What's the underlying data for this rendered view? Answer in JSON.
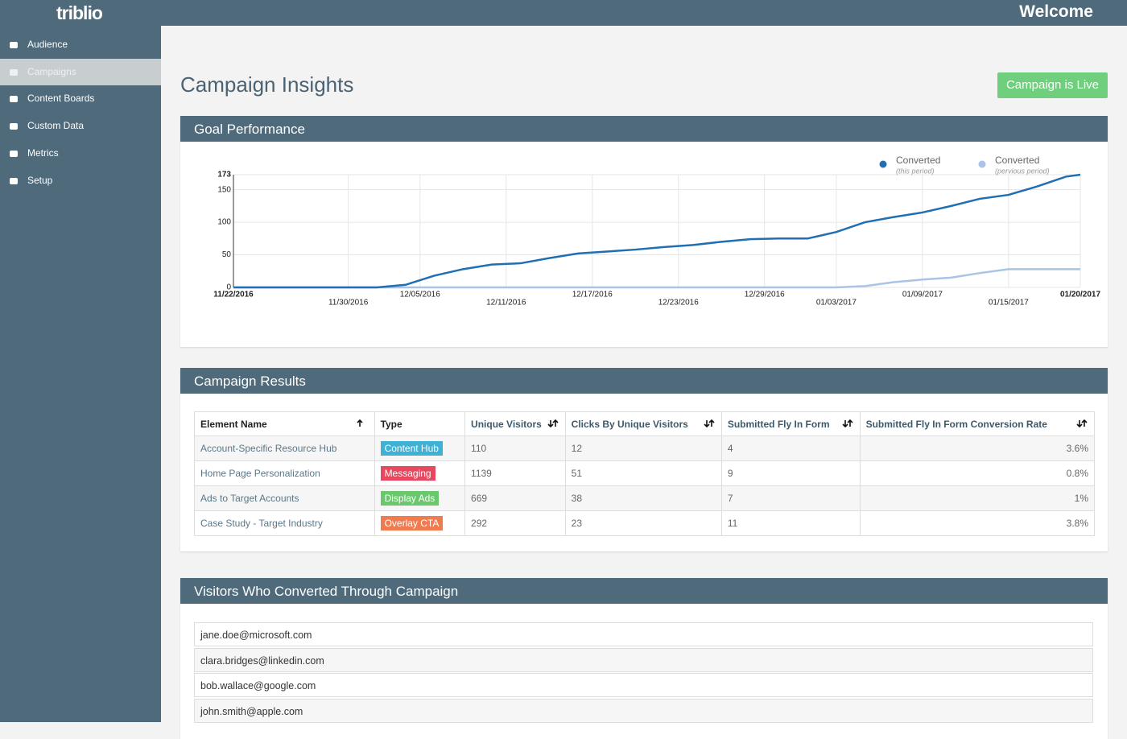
{
  "header": {
    "logo": "triblio",
    "welcome": "Welcome"
  },
  "sidebar": {
    "items": [
      "Audience",
      "Campaigns",
      "Content Boards",
      "Custom Data",
      "Metrics",
      "Setup"
    ],
    "active": 1
  },
  "page": {
    "title": "Campaign Insights",
    "status_button": "Campaign is Live"
  },
  "panels": {
    "goal_performance": "Goal Performance"
  },
  "chart_data": {
    "type": "line",
    "x": [
      "11/22/2016",
      "11/24/2016",
      "11/26/2016",
      "11/28/2016",
      "11/30/2016",
      "12/02/2016",
      "12/04/2016",
      "12/06/2016",
      "12/08/2016",
      "12/10/2016",
      "12/12/2016",
      "12/14/2016",
      "12/16/2016",
      "12/18/2016",
      "12/20/2016",
      "12/22/2016",
      "12/24/2016",
      "12/26/2016",
      "12/28/2016",
      "12/30/2016",
      "01/01/2017",
      "01/03/2017",
      "01/05/2017",
      "01/07/2017",
      "01/09/2017",
      "01/11/2017",
      "01/13/2017",
      "01/15/2017",
      "01/17/2017",
      "01/19/2017",
      "01/20/2017"
    ],
    "xlim": [
      "11/22/2016",
      "01/20/2017"
    ],
    "xticks": [
      "11/22/2016",
      "11/30/2016",
      "12/05/2016",
      "12/11/2016",
      "12/17/2016",
      "12/23/2016",
      "12/29/2016",
      "01/03/2017",
      "01/09/2017",
      "01/15/2017",
      "01/20/2017"
    ],
    "ylim": [
      0,
      173
    ],
    "yticks": [
      0,
      50,
      100,
      150,
      173
    ],
    "grid": true,
    "legend": "top-right",
    "series": [
      {
        "name": "Converted",
        "note": "(this period)",
        "color": "#1f6fb2",
        "values": [
          0,
          0,
          0,
          0,
          0,
          0,
          4,
          18,
          28,
          35,
          37,
          45,
          52,
          55,
          58,
          62,
          65,
          70,
          74,
          75,
          75,
          85,
          100,
          108,
          115,
          125,
          136,
          142,
          155,
          170,
          173
        ]
      },
      {
        "name": "Converted",
        "note": "(pervious period)",
        "color": "#a9c4e6",
        "values": [
          0,
          0,
          0,
          0,
          0,
          0,
          0,
          0,
          0,
          0,
          0,
          0,
          0,
          0,
          0,
          0,
          0,
          0,
          0,
          0,
          0,
          0,
          2,
          8,
          12,
          15,
          22,
          28,
          28,
          28,
          28
        ]
      }
    ]
  },
  "results": {
    "title": "Campaign Results",
    "columns": [
      "Element Name",
      "Type",
      "Unique Visitors",
      "Clicks By Unique Visitors",
      "Submitted Fly In Form",
      "Submitted Fly In Form Conversion Rate"
    ],
    "type_colors": [
      "#3fb1d5",
      "#e6485f",
      "#69c86b",
      "#f07b4f"
    ],
    "rows": [
      [
        "Account-Specific Resource Hub",
        "Content Hub",
        "110",
        "12",
        "4",
        "3.6%"
      ],
      [
        "Home Page Personalization",
        "Messaging",
        "1139",
        "51",
        "9",
        "0.8%"
      ],
      [
        "Ads to Target Accounts",
        "Display Ads",
        "669",
        "38",
        "7",
        "1%"
      ],
      [
        "Case Study - Target Industry",
        "Overlay CTA",
        "292",
        "23",
        "11",
        "3.8%"
      ]
    ]
  },
  "visitors": {
    "title": "Visitors Who Converted Through Campaign",
    "emails": [
      "jane.doe@microsoft.com",
      "clara.bridges@linkedin.com",
      "bob.wallace@google.com",
      "john.smith@apple.com"
    ]
  }
}
